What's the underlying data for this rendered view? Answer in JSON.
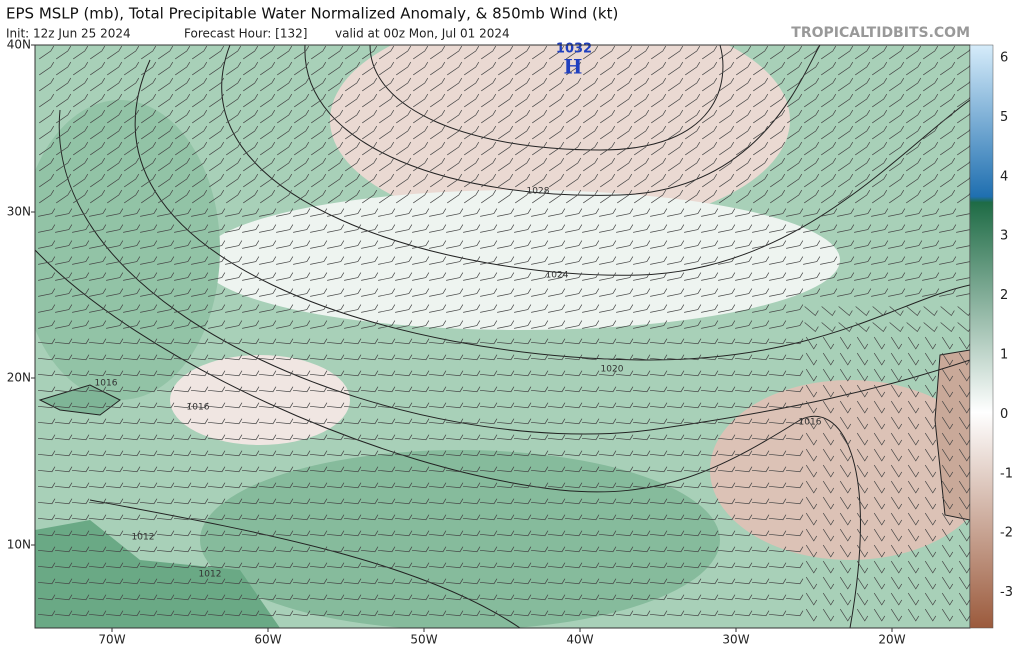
{
  "header": {
    "title": "EPS MSLP (mb), Total Precipitable Water Normalized Anomaly, & 850mb Wind (kt)",
    "init": "Init: 12z Jun 25 2024",
    "forecast_hour": "Forecast Hour: [132]",
    "valid": "valid at 00z Mon, Jul 01 2024",
    "credit": "TROPICALTIDBITS.COM"
  },
  "map": {
    "lat_labels": [
      "40N",
      "30N",
      "20N",
      "10N"
    ],
    "lon_labels": [
      "70W",
      "60W",
      "50W",
      "40W",
      "30W",
      "20W"
    ],
    "high_pressure": "1032",
    "high_label": "H",
    "isobar_labels": [
      "1028",
      "1024",
      "1020",
      "1016",
      "1016",
      "1016",
      "1012",
      "1012"
    ]
  },
  "colorbar": {
    "labels": [
      "6",
      "5",
      "4",
      "3",
      "2",
      "1",
      "0",
      "-1",
      "-2",
      "-3"
    ]
  }
}
